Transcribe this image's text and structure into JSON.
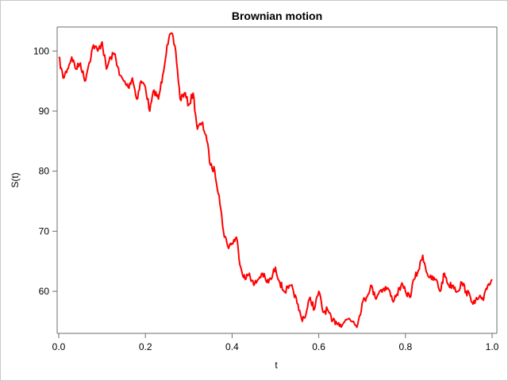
{
  "chart_data": {
    "type": "line",
    "title": "Brownian motion",
    "xlabel": "t",
    "ylabel": "S(t)",
    "xlim": [
      0.0,
      1.0
    ],
    "ylim": [
      53,
      104
    ],
    "xticks": [
      "0.0",
      "0.2",
      "0.4",
      "0.6",
      "0.8",
      "1.0"
    ],
    "yticks": [
      "60",
      "70",
      "80",
      "90",
      "100"
    ],
    "grid": false,
    "legend": "none",
    "series": [
      {
        "color": "#ff0000",
        "x": [
          0.0,
          0.01,
          0.02,
          0.03,
          0.04,
          0.05,
          0.06,
          0.07,
          0.08,
          0.09,
          0.1,
          0.11,
          0.12,
          0.13,
          0.14,
          0.15,
          0.16,
          0.17,
          0.18,
          0.19,
          0.2,
          0.21,
          0.22,
          0.23,
          0.24,
          0.25,
          0.26,
          0.27,
          0.28,
          0.29,
          0.3,
          0.31,
          0.32,
          0.33,
          0.34,
          0.35,
          0.36,
          0.37,
          0.38,
          0.39,
          0.4,
          0.41,
          0.42,
          0.43,
          0.44,
          0.45,
          0.46,
          0.47,
          0.48,
          0.49,
          0.5,
          0.51,
          0.52,
          0.53,
          0.54,
          0.55,
          0.56,
          0.57,
          0.58,
          0.59,
          0.6,
          0.61,
          0.62,
          0.63,
          0.64,
          0.65,
          0.66,
          0.67,
          0.68,
          0.69,
          0.7,
          0.71,
          0.72,
          0.73,
          0.74,
          0.75,
          0.76,
          0.77,
          0.78,
          0.79,
          0.8,
          0.81,
          0.82,
          0.83,
          0.84,
          0.85,
          0.86,
          0.87,
          0.88,
          0.89,
          0.9,
          0.91,
          0.92,
          0.93,
          0.94,
          0.95,
          0.96,
          0.97,
          0.98,
          0.99,
          1.0
        ],
        "y": [
          99,
          95.5,
          97,
          99,
          97,
          98,
          95,
          98,
          101,
          100,
          101.5,
          97,
          99,
          99.5,
          96,
          95,
          94,
          95.5,
          92,
          95,
          94,
          90,
          93.5,
          92,
          96,
          101,
          103,
          100,
          92,
          93,
          91,
          93,
          87,
          88,
          86,
          81,
          80,
          76,
          70,
          67.5,
          68,
          69,
          64,
          62,
          63,
          61,
          62,
          63,
          61.5,
          62,
          64,
          61.5,
          60,
          60.5,
          60.5,
          58,
          55.5,
          56,
          59,
          57,
          60,
          56.5,
          57,
          55,
          55,
          54.5,
          55,
          55.5,
          55,
          54.5,
          58,
          59,
          61,
          59,
          60,
          60.5,
          60.5,
          58.5,
          59.5,
          61,
          60,
          59,
          62,
          63.5,
          66,
          63,
          62,
          62,
          60,
          63,
          61,
          61,
          60,
          61.5,
          60,
          59,
          58,
          59,
          58.5,
          61,
          62
        ]
      }
    ]
  }
}
